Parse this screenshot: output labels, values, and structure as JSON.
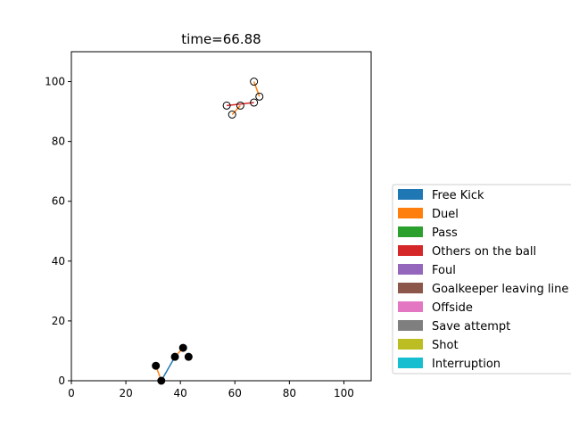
{
  "chart_data": {
    "type": "scatter",
    "title": "time=66.88",
    "xlabel": "",
    "ylabel": "",
    "xlim": [
      0,
      110
    ],
    "ylim": [
      0,
      110
    ],
    "xticks": [
      0,
      20,
      40,
      60,
      80,
      100
    ],
    "yticks": [
      0,
      20,
      40,
      60,
      80,
      100
    ],
    "grid": false,
    "legend_position": "right",
    "legend": [
      {
        "label": "Free Kick",
        "color": "#1f77b4"
      },
      {
        "label": "Duel",
        "color": "#ff7f0e"
      },
      {
        "label": "Pass",
        "color": "#2ca02c"
      },
      {
        "label": "Others on the ball",
        "color": "#d62728"
      },
      {
        "label": "Foul",
        "color": "#9467bd"
      },
      {
        "label": "Goalkeeper leaving line",
        "color": "#8c564b"
      },
      {
        "label": "Offside",
        "color": "#e377c2"
      },
      {
        "label": "Save attempt",
        "color": "#7f7f7f"
      },
      {
        "label": "Shot",
        "color": "#bcbd22"
      },
      {
        "label": "Interruption",
        "color": "#17becf"
      }
    ],
    "segments": [
      {
        "event": "Free Kick",
        "color": "#1f77b4",
        "from": [
          33,
          0
        ],
        "to": [
          38,
          8
        ]
      },
      {
        "event": "Duel",
        "color": "#ff7f0e",
        "from": [
          31,
          5
        ],
        "to": [
          33,
          0
        ]
      },
      {
        "event": "Duel",
        "color": "#ff7f0e",
        "from": [
          38,
          8
        ],
        "to": [
          41,
          11
        ]
      },
      {
        "event": "Duel",
        "color": "#ff7f0e",
        "from": [
          67,
          100
        ],
        "to": [
          69,
          95
        ]
      },
      {
        "event": "Duel",
        "color": "#ff7f0e",
        "from": [
          62,
          92
        ],
        "to": [
          59,
          89
        ]
      },
      {
        "event": "Others on the ball",
        "color": "#d62728",
        "from": [
          57,
          92
        ],
        "to": [
          67,
          93
        ]
      }
    ],
    "filled_points": [
      {
        "x": 31,
        "y": 5
      },
      {
        "x": 33,
        "y": 0
      },
      {
        "x": 38,
        "y": 8
      },
      {
        "x": 41,
        "y": 11
      },
      {
        "x": 43,
        "y": 8
      }
    ],
    "hollow_points": [
      {
        "x": 67,
        "y": 100
      },
      {
        "x": 69,
        "y": 95
      },
      {
        "x": 67,
        "y": 93
      },
      {
        "x": 62,
        "y": 92
      },
      {
        "x": 57,
        "y": 92
      },
      {
        "x": 59,
        "y": 89
      }
    ]
  }
}
